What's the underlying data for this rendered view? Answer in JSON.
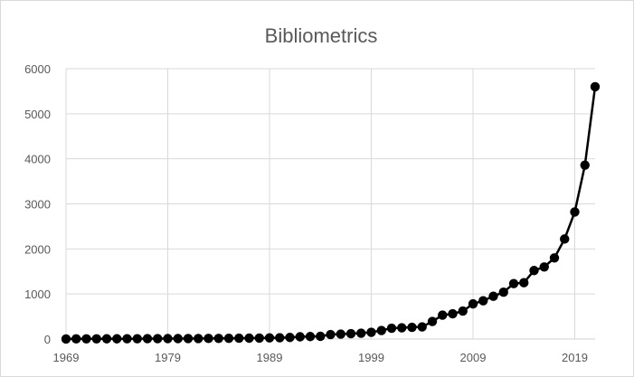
{
  "chart_data": {
    "type": "line",
    "title": "Bibliometrics",
    "xlabel": "",
    "ylabel": "",
    "xlim": [
      1969,
      2021
    ],
    "ylim": [
      0,
      6000
    ],
    "grid": true,
    "legend": "none",
    "x_ticks": [
      "1969",
      "1979",
      "1989",
      "1999",
      "2009",
      "2019"
    ],
    "y_ticks": [
      "0",
      "1000",
      "2000",
      "3000",
      "4000",
      "5000",
      "6000"
    ],
    "line_color": "#000000",
    "grid_color": "#d9d9d9",
    "series": [
      {
        "x": [
          1969,
          1970,
          1971,
          1972,
          1973,
          1974,
          1975,
          1976,
          1977,
          1978,
          1979,
          1980,
          1981,
          1982,
          1983,
          1984,
          1985,
          1986,
          1987,
          1988,
          1989,
          1990,
          1991,
          1992,
          1993,
          1994,
          1995,
          1996,
          1997,
          1998,
          1999,
          2000,
          2001,
          2002,
          2003,
          2004,
          2005,
          2006,
          2007,
          2008,
          2009,
          2010,
          2011,
          2012,
          2013,
          2014,
          2015,
          2016,
          2017,
          2018,
          2019,
          2020,
          2021
        ],
        "values": [
          2,
          3,
          4,
          4,
          5,
          5,
          6,
          7,
          8,
          9,
          10,
          10,
          11,
          12,
          13,
          14,
          16,
          18,
          20,
          22,
          25,
          28,
          35,
          50,
          55,
          60,
          100,
          110,
          120,
          130,
          150,
          190,
          240,
          250,
          260,
          270,
          390,
          530,
          560,
          620,
          780,
          850,
          950,
          1040,
          1230,
          1250,
          1520,
          1600,
          1800,
          2220,
          2820,
          3860,
          5600
        ]
      }
    ]
  }
}
